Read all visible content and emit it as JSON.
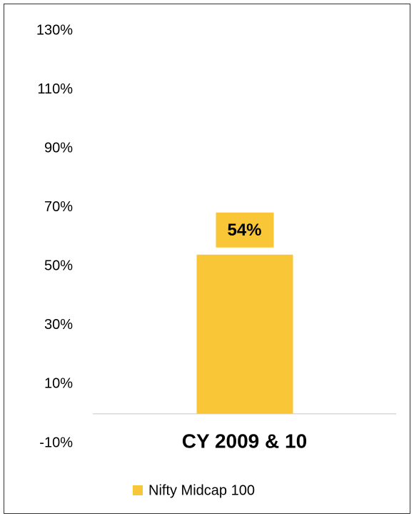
{
  "chart_data": {
    "type": "bar",
    "categories": [
      "CY 2009 & 10"
    ],
    "series": [
      {
        "name": "Nifty Midcap 100",
        "color": "#f9c637",
        "values": [
          54
        ],
        "value_labels": [
          "54%"
        ]
      }
    ],
    "ylim": [
      -10,
      130
    ],
    "yticks": [
      {
        "value": -10,
        "label": "-10%"
      },
      {
        "value": 10,
        "label": "10%"
      },
      {
        "value": 30,
        "label": "30%"
      },
      {
        "value": 50,
        "label": "50%"
      },
      {
        "value": 70,
        "label": "70%"
      },
      {
        "value": 90,
        "label": "90%"
      },
      {
        "value": 110,
        "label": "110%"
      },
      {
        "value": 130,
        "label": "130%"
      }
    ],
    "grid": false,
    "legend": "bottom"
  }
}
